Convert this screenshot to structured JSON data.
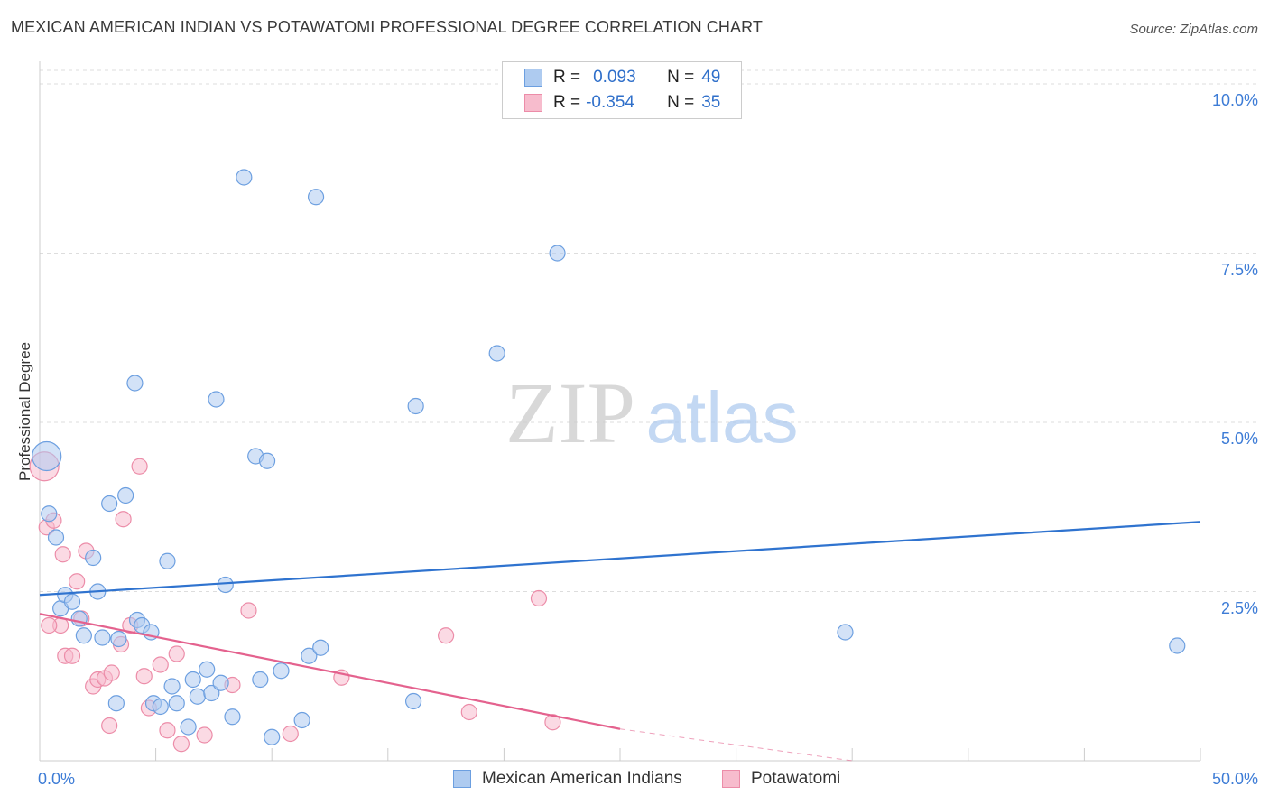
{
  "header": {
    "title": "MEXICAN AMERICAN INDIAN VS POTAWATOMI PROFESSIONAL DEGREE CORRELATION CHART",
    "source": "Source: ZipAtlas.com"
  },
  "watermark": {
    "zip": "ZIP",
    "atlas": "atlas"
  },
  "legend": {
    "rows": [
      {
        "r_label": "R =",
        "r_value": "0.093",
        "n_label": "N =",
        "n_value": "49",
        "color": "#aecbf0"
      },
      {
        "r_label": "R =",
        "r_value": "-0.354",
        "n_label": "N =",
        "n_value": "35",
        "color": "#f7bccd"
      }
    ]
  },
  "colors": {
    "blue_fill": "#aecbf0",
    "blue_stroke": "#6c9fe0",
    "blue_line": "#2f73cf",
    "pink_fill": "#f7bccd",
    "pink_stroke": "#ec8ca8",
    "pink_line": "#e4628e",
    "grid": "#dddddd",
    "tick_label": "#3d7cd6"
  },
  "chart_data": {
    "type": "scatter",
    "title": "MEXICAN AMERICAN INDIAN VS POTAWATOMI PROFESSIONAL DEGREE CORRELATION CHART",
    "xlabel": "",
    "ylabel": "Professional Degree",
    "xlim": [
      0,
      50
    ],
    "ylim": [
      0,
      10.2
    ],
    "x_tick_labels": [
      "0.0%",
      "50.0%"
    ],
    "y_ticks": [
      2.5,
      5.0,
      7.5,
      10.0
    ],
    "y_tick_labels": [
      "2.5%",
      "5.0%",
      "7.5%",
      "10.0%"
    ],
    "grid": true,
    "legend_position": "bottom",
    "series": [
      {
        "name": "Mexican American Indians",
        "R": 0.093,
        "N": 49,
        "trend": {
          "x": [
            0,
            50
          ],
          "y": [
            2.45,
            3.53
          ]
        },
        "points": [
          [
            0.3,
            4.5,
            "large"
          ],
          [
            0.4,
            3.65
          ],
          [
            0.7,
            3.3
          ],
          [
            0.9,
            2.25
          ],
          [
            1.1,
            2.45
          ],
          [
            1.4,
            2.35
          ],
          [
            1.7,
            2.1
          ],
          [
            1.9,
            1.85
          ],
          [
            2.3,
            3.0
          ],
          [
            2.5,
            2.5
          ],
          [
            2.7,
            1.82
          ],
          [
            3.0,
            3.8
          ],
          [
            3.3,
            0.85
          ],
          [
            3.4,
            1.8
          ],
          [
            3.7,
            3.92
          ],
          [
            4.1,
            5.58
          ],
          [
            4.2,
            2.08
          ],
          [
            4.4,
            2.0
          ],
          [
            4.8,
            1.9
          ],
          [
            4.9,
            0.85
          ],
          [
            5.2,
            0.8
          ],
          [
            5.5,
            2.95
          ],
          [
            5.7,
            1.1
          ],
          [
            5.9,
            0.85
          ],
          [
            6.4,
            0.5
          ],
          [
            6.6,
            1.2
          ],
          [
            6.8,
            0.95
          ],
          [
            7.2,
            1.35
          ],
          [
            7.4,
            1.0
          ],
          [
            7.6,
            5.34
          ],
          [
            7.8,
            1.15
          ],
          [
            8.0,
            2.6
          ],
          [
            8.3,
            0.65
          ],
          [
            8.8,
            8.62
          ],
          [
            9.3,
            4.5
          ],
          [
            9.5,
            1.2
          ],
          [
            9.8,
            4.43
          ],
          [
            10.0,
            0.35
          ],
          [
            10.4,
            1.33
          ],
          [
            11.3,
            0.6
          ],
          [
            11.6,
            1.55
          ],
          [
            11.9,
            8.33
          ],
          [
            12.1,
            1.67
          ],
          [
            16.1,
            0.88
          ],
          [
            16.2,
            5.24
          ],
          [
            19.7,
            6.02
          ],
          [
            22.3,
            7.5
          ],
          [
            34.7,
            1.9
          ],
          [
            49.0,
            1.7
          ]
        ]
      },
      {
        "name": "Potawatomi",
        "R": -0.354,
        "N": 35,
        "trend": {
          "x": [
            0,
            25
          ],
          "y": [
            2.17,
            0.47
          ]
        },
        "trend_dashed": {
          "x": [
            25,
            35
          ],
          "y": [
            0.47,
            -0.2
          ]
        },
        "points": [
          [
            0.2,
            4.35,
            "large"
          ],
          [
            0.3,
            3.45
          ],
          [
            0.6,
            3.55
          ],
          [
            0.9,
            2.0
          ],
          [
            1.0,
            3.05
          ],
          [
            1.1,
            1.55
          ],
          [
            1.4,
            1.55
          ],
          [
            1.6,
            2.65
          ],
          [
            1.8,
            2.1
          ],
          [
            2.0,
            3.1
          ],
          [
            2.3,
            1.1
          ],
          [
            2.5,
            1.2
          ],
          [
            2.8,
            1.22
          ],
          [
            3.0,
            0.52
          ],
          [
            3.1,
            1.3
          ],
          [
            3.5,
            1.72
          ],
          [
            3.6,
            3.57
          ],
          [
            3.9,
            2.0
          ],
          [
            4.3,
            4.35
          ],
          [
            4.5,
            1.25
          ],
          [
            4.7,
            0.78
          ],
          [
            5.2,
            1.42
          ],
          [
            5.5,
            0.45
          ],
          [
            5.9,
            1.58
          ],
          [
            6.1,
            0.25
          ],
          [
            7.1,
            0.38
          ],
          [
            8.3,
            1.12
          ],
          [
            9.0,
            2.22
          ],
          [
            10.8,
            0.4
          ],
          [
            13.0,
            1.23
          ],
          [
            17.5,
            1.85
          ],
          [
            18.5,
            0.72
          ],
          [
            21.5,
            2.4
          ],
          [
            22.1,
            0.57
          ],
          [
            0.4,
            2.0
          ]
        ]
      }
    ]
  }
}
